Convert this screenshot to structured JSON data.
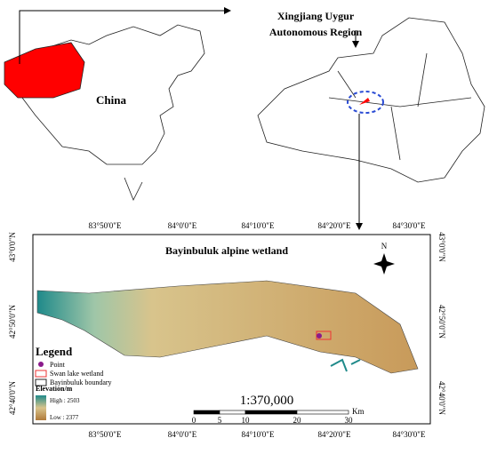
{
  "inset_china": {
    "label": "China"
  },
  "inset_xinjiang": {
    "label_line1": "Xingjiang Uygur",
    "label_line2": "Autonomous Region"
  },
  "main_map": {
    "title": "Bayinbuluk alpine wetland",
    "north": "N",
    "top_lon_labels": [
      "83°50'0\"E",
      "84°0'0\"E",
      "84°10'0\"E",
      "84°20'0\"E",
      "84°30'0\"E"
    ],
    "bottom_lon_labels": [
      "83°50'0\"E",
      "84°0'0\"E",
      "84°10'0\"E",
      "84°20'0\"E",
      "84°30'0\"E"
    ],
    "left_lat_labels": [
      "43°0'0\"N",
      "42°50'0\"N",
      "42°40'0\"N"
    ],
    "right_lat_labels": [
      "43°0'0\"N",
      "42°50'0\"N",
      "42°40'0\"N"
    ],
    "scale_ratio": "1:370,000",
    "scale_bar": {
      "ticks": [
        "0",
        "5",
        "10",
        "20",
        "30"
      ],
      "unit": "Km"
    }
  },
  "legend": {
    "title": "Legend",
    "items": [
      "Point",
      "Swan lake wetland",
      "Bayinbuluk boundary"
    ],
    "elevation_title": "Elevation/m",
    "high": "High : 2503",
    "low": "Low : 2377"
  }
}
